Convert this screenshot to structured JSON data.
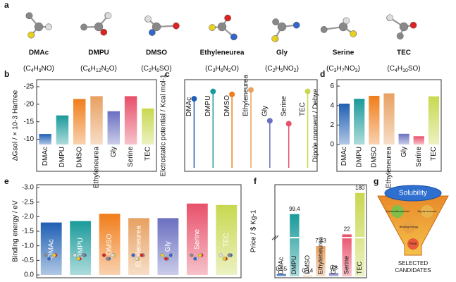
{
  "panel_labels": [
    "a",
    "b",
    "c",
    "d",
    "e",
    "f",
    "g"
  ],
  "molecules": {
    "names": [
      "DMAc",
      "DMPU",
      "DMSO",
      "Ethyleneurea",
      "Gly",
      "Serine",
      "TEC"
    ],
    "formulas": [
      "(C4H9NO)",
      "(C6H12N2O)",
      "(C2H6SO)",
      "(C3H6N2O)",
      "(C2H5NO2)",
      "(C3H7NO3)",
      "(C4H10SO)"
    ]
  },
  "chart_data": [
    {
      "type": "bar",
      "ylabel": "ΔGsol / × 10-3 Hartree",
      "categories": [
        "DMAc",
        "DMPU",
        "DMSO",
        "Ethyleneurea",
        "Gly",
        "Serine",
        "TEC"
      ],
      "values": [
        -11.5,
        -16.8,
        -21.5,
        -22.3,
        -18,
        -22.3,
        -18.8
      ],
      "colors": [
        "#1f5fb4",
        "#1a9a9a",
        "#f07d1a",
        "#e8a060",
        "#6a6fc0",
        "#e8506a",
        "#c8d850"
      ],
      "ylim": [
        -8.5,
        -26
      ],
      "yticks": [
        -25,
        -20,
        -15,
        -10
      ]
    },
    {
      "type": "lollipop",
      "ylabel": "Elctrostatic potential / Kcal mol-1",
      "categories": [
        "DMAc",
        "DMPU",
        "DMSO",
        "Ethyleneurea",
        "Gly",
        "Serine",
        "TEC"
      ],
      "values": [
        -47,
        -52,
        -50,
        -53,
        -32,
        -30,
        -52
      ],
      "colors": [
        "#1f5fb4",
        "#1a9a9a",
        "#f07d1a",
        "#e8a060",
        "#6a6fc0",
        "#e8506a",
        "#c8d850"
      ],
      "ylim": [
        0,
        -60
      ]
    },
    {
      "type": "bar",
      "ylabel": "Dipole moment / Debye",
      "categories": [
        "DMAc",
        "DMPU",
        "DMSO",
        "Ethyleneurea",
        "Gly",
        "Serine",
        "TEC"
      ],
      "values": [
        4.2,
        4.7,
        5.0,
        5.25,
        1.1,
        0.85,
        4.95
      ],
      "colors": [
        "#1f5fb4",
        "#1a9a9a",
        "#f07d1a",
        "#e8a060",
        "#6a6fc0",
        "#e8506a",
        "#c8d850"
      ],
      "ylim": [
        0,
        6.3
      ],
      "yticks": [
        0,
        2,
        4,
        6
      ]
    },
    {
      "type": "bar",
      "ylabel": "Binding energy / eV",
      "categories": [
        "DMAc",
        "DMPU",
        "DMSO",
        "Ethyleneurea",
        "Gly",
        "Serine",
        "TEC"
      ],
      "values": [
        -1.8,
        -1.85,
        -2.1,
        -1.95,
        -1.95,
        -2.45,
        -2.4
      ],
      "colors": [
        "#1f5fb4",
        "#1a9a9a",
        "#f07d1a",
        "#e8a060",
        "#6a6fc0",
        "#e8506a",
        "#c8d850"
      ],
      "ylim": [
        0,
        -3
      ],
      "yticks": [
        {
          "value": 0,
          "label": "0.0"
        },
        -0.5,
        {
          "value": -1,
          "label": "-1.0"
        },
        -1.5,
        {
          "value": -2,
          "label": "-2.0"
        },
        -2.5,
        {
          "value": -3,
          "label": "-3.0"
        }
      ]
    },
    {
      "type": "bar",
      "ylabel": "Price / $ Kg-1",
      "categories": [
        "DMAc",
        "DMPU",
        "DMSO",
        "Ethyleneurea",
        "Gly",
        "Serine",
        "TEC"
      ],
      "values": [
        0.55,
        99.4,
        0.14,
        7.43,
        0.8,
        22,
        180
      ],
      "value_labels": [
        "0.55",
        "99.4",
        "0.14",
        "7.43",
        "0.8",
        "22",
        "180"
      ],
      "colors": [
        "#1f5fb4",
        "#1a9a9a",
        "#f07d1a",
        "#e8a060",
        "#6a6fc0",
        "#e8506a",
        "#c8d850"
      ],
      "ylim": [
        0,
        190
      ],
      "broken_axis": true
    }
  ],
  "funnel": {
    "top": "Solubility",
    "circles": [
      "Electrostatic potential",
      "Dipole moment",
      "Binding energy",
      "Price"
    ],
    "bottom_lines": [
      "SELECTED",
      "CANDIDATES"
    ]
  }
}
